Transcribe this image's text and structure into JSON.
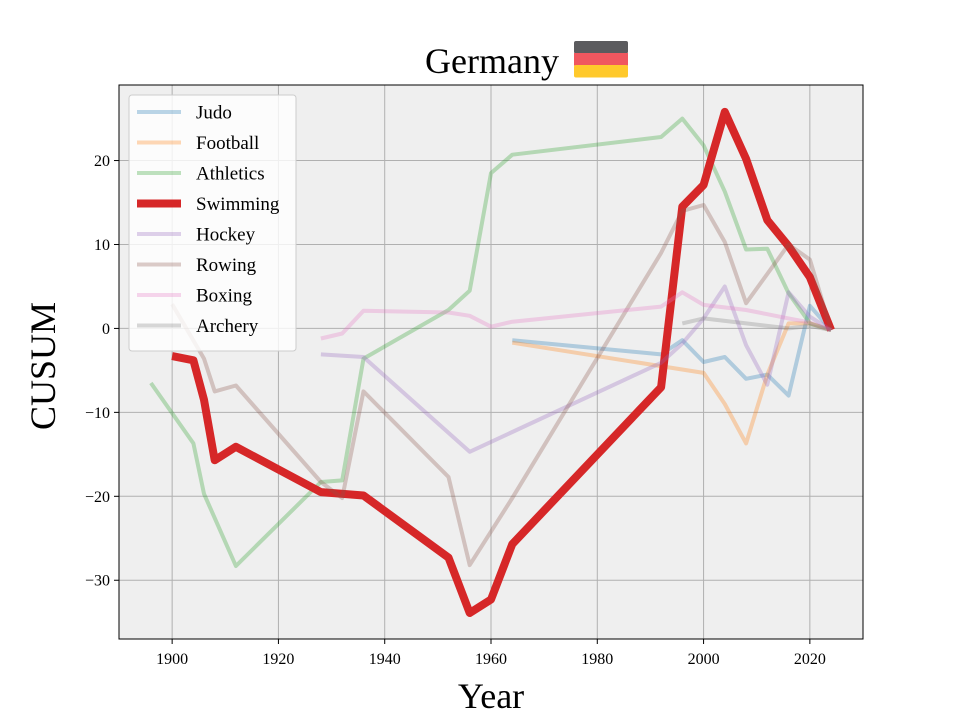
{
  "chart_data": {
    "type": "line",
    "title": "Germany",
    "xlabel": "Year",
    "ylabel": "CUSUM",
    "xlim": [
      1890,
      2030
    ],
    "ylim": [
      -37,
      29
    ],
    "xticks": [
      1900,
      1920,
      1940,
      1960,
      1980,
      2000,
      2020
    ],
    "yticks": [
      -30,
      -20,
      -10,
      0,
      10,
      20
    ],
    "grid": true,
    "legend_position": "upper-left",
    "flag_colors": [
      "#5b5b5e",
      "#f0575f",
      "#ffc92b"
    ],
    "series": [
      {
        "name": "Judo",
        "color": "#1f77b4",
        "alpha": 0.3,
        "linewidth": 4,
        "x": [
          1964,
          1992,
          1996,
          2000,
          2004,
          2008,
          2012,
          2016,
          2020,
          2024
        ],
        "y": [
          -1.4,
          -3.1,
          -1.4,
          -4.0,
          -3.4,
          -6.0,
          -5.5,
          -8.0,
          2.7,
          -0.2
        ]
      },
      {
        "name": "Football",
        "color": "#ff7f0e",
        "alpha": 0.3,
        "linewidth": 4,
        "x": [
          1964,
          2000,
          2004,
          2008,
          2012,
          2016,
          2020,
          2024
        ],
        "y": [
          -1.7,
          -5.3,
          -9.0,
          -13.7,
          -5.5,
          0.6,
          0.6,
          -0.2
        ]
      },
      {
        "name": "Athletics",
        "color": "#2ca02c",
        "alpha": 0.3,
        "linewidth": 4,
        "x": [
          1896,
          1904,
          1906,
          1912,
          1928,
          1932,
          1936,
          1952,
          1956,
          1960,
          1964,
          1992,
          1996,
          2000,
          2004,
          2008,
          2012,
          2016,
          2020,
          2024
        ],
        "y": [
          -6.5,
          -13.7,
          -19.7,
          -28.3,
          -18.3,
          -18.1,
          -3.6,
          2.2,
          4.5,
          18.5,
          20.7,
          22.8,
          25.0,
          21.8,
          16.3,
          9.4,
          9.5,
          4.2,
          0.6,
          -0.2
        ]
      },
      {
        "name": "Swimming",
        "color": "#d62728",
        "alpha": 1.0,
        "linewidth": 8,
        "x": [
          1900,
          1904,
          1906,
          1908,
          1912,
          1928,
          1936,
          1952,
          1956,
          1960,
          1964,
          1992,
          1996,
          2000,
          2004,
          2008,
          2012,
          2016,
          2020,
          2024
        ],
        "y": [
          -3.3,
          -3.8,
          -8.5,
          -15.7,
          -14.1,
          -19.5,
          -19.9,
          -27.3,
          -33.9,
          -32.3,
          -25.7,
          -7.0,
          14.5,
          17.1,
          25.8,
          20.2,
          12.9,
          9.8,
          6.1,
          -0.2
        ]
      },
      {
        "name": "Hockey",
        "color": "#9467bd",
        "alpha": 0.3,
        "linewidth": 4,
        "x": [
          1928,
          1936,
          1956,
          1992,
          1996,
          2000,
          2004,
          2008,
          2012,
          2016,
          2020,
          2024
        ],
        "y": [
          -3.1,
          -3.4,
          -14.7,
          -4.1,
          -1.8,
          1.2,
          5.0,
          -2.0,
          -6.7,
          4.3,
          1.4,
          -0.2
        ]
      },
      {
        "name": "Rowing",
        "color": "#8c564b",
        "alpha": 0.3,
        "linewidth": 4,
        "x": [
          1900,
          1906,
          1908,
          1912,
          1928,
          1932,
          1936,
          1952,
          1956,
          1964,
          1992,
          1996,
          2000,
          2004,
          2008,
          2016,
          2020,
          2024
        ],
        "y": [
          2.9,
          -3.6,
          -7.5,
          -6.8,
          -18.3,
          -20.2,
          -7.5,
          -17.7,
          -28.2,
          -20.2,
          9.0,
          14.0,
          14.7,
          10.3,
          3.0,
          10.0,
          8.2,
          -0.2
        ]
      },
      {
        "name": "Boxing",
        "color": "#e377c2",
        "alpha": 0.3,
        "linewidth": 4,
        "x": [
          1928,
          1932,
          1936,
          1952,
          1956,
          1960,
          1964,
          1992,
          1996,
          2000,
          2008,
          2012,
          2016,
          2020,
          2024
        ],
        "y": [
          -1.2,
          -0.6,
          2.1,
          1.9,
          1.5,
          0.2,
          0.8,
          2.6,
          4.3,
          2.8,
          2.2,
          1.7,
          1.2,
          0.7,
          -0.2
        ]
      },
      {
        "name": "Archery",
        "color": "#7f7f7f",
        "alpha": 0.3,
        "linewidth": 4,
        "x": [
          1996,
          2000,
          2008,
          2016,
          2020,
          2024
        ],
        "y": [
          0.6,
          1.2,
          0.6,
          0.0,
          0.3,
          -0.2
        ]
      }
    ]
  }
}
